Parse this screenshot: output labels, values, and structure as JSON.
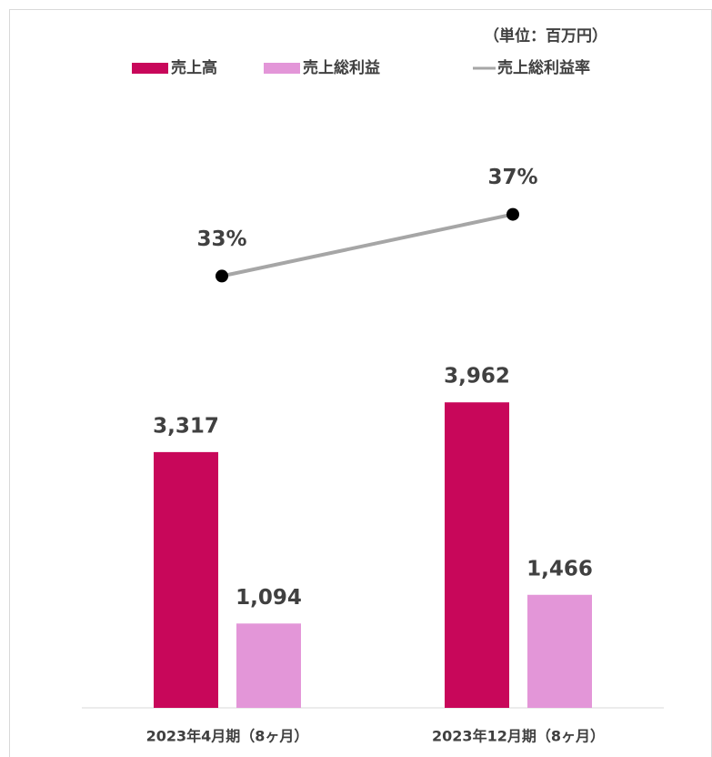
{
  "chart_data": {
    "type": "bar",
    "subtitle": "（単位：百万円）",
    "categories": [
      "2023年4月期（8ヶ月）",
      "2023年12月期（8ヶ月）"
    ],
    "series": [
      {
        "name": "売上高",
        "color": "#c8075a",
        "values": [
          3317,
          3962
        ],
        "value_labels": [
          "3,317",
          "3,962"
        ]
      },
      {
        "name": "売上総利益",
        "color": "#e396d8",
        "values": [
          1094,
          1466
        ],
        "value_labels": [
          "1,094",
          "1,466"
        ]
      },
      {
        "name": "売上総利益率",
        "type": "line",
        "axis": "y2",
        "color": "#a6a6a6",
        "marker_color": "#000000",
        "values": [
          33,
          37
        ],
        "value_labels": [
          "33%",
          "37%"
        ]
      }
    ],
    "ylim": [
      0,
      8000
    ],
    "y2lim": [
      5,
      45
    ],
    "legend": "top"
  }
}
